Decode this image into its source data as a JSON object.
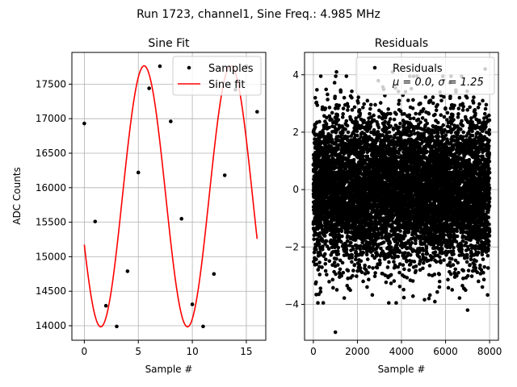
{
  "suptitle": "Run 1723, channel1, Sine Freq.: 4.985 MHz",
  "chart_data": [
    {
      "type": "scatter+line",
      "title": "Sine Fit",
      "xlabel": "Sample #",
      "ylabel": "ADC Counts",
      "xlim": [
        -1.15,
        16.8
      ],
      "ylim": [
        13790,
        17960
      ],
      "xticks": [
        0,
        5,
        10,
        15
      ],
      "yticks": [
        14000,
        14500,
        15000,
        15500,
        16000,
        16500,
        17000,
        17500
      ],
      "grid": true,
      "legend_position": "top-right",
      "series": [
        {
          "name": "Samples",
          "marker": "dot",
          "color": "#000000",
          "x": [
            0,
            1,
            2,
            3,
            4,
            5,
            6,
            7,
            8,
            9,
            10,
            11,
            12,
            13,
            14,
            15,
            16
          ],
          "y": [
            16930,
            15510,
            14290,
            13990,
            14790,
            16220,
            17440,
            17760,
            16960,
            15550,
            14310,
            13990,
            14750,
            16180,
            17420,
            17760,
            17100
          ]
        },
        {
          "name": "Sine fit",
          "line": "solid",
          "color": "#ff0000",
          "model": {
            "offset": 15875,
            "amplitude": 1890,
            "period_samples": 8.03,
            "phase_sample": -4.5
          },
          "x_range": [
            0,
            16
          ]
        }
      ]
    },
    {
      "type": "scatter",
      "title": "Residuals",
      "xlabel": "Sample #",
      "ylabel": "",
      "xlim": [
        -400,
        8400
      ],
      "ylim": [
        -5.25,
        4.78
      ],
      "xticks": [
        0,
        2000,
        4000,
        6000,
        8000
      ],
      "yticks": [
        -4,
        -2,
        0,
        2,
        4
      ],
      "grid": true,
      "legend_position": "top-right",
      "series": [
        {
          "name": "Residuals",
          "marker": "dot",
          "color": "#000000",
          "n_points": 8000,
          "mean": 0.0,
          "std": 1.25,
          "outliers": [
            {
              "x": 1000,
              "y": -4.97
            },
            {
              "x": 1050,
              "y": 4.1
            },
            {
              "x": 7000,
              "y": -4.2
            },
            {
              "x": 3600,
              "y": 4.1
            },
            {
              "x": 7800,
              "y": 4.2
            }
          ]
        }
      ],
      "legend_stats": {
        "mu_label": "μ = 0.0, ",
        "sigma_label": "σ = 1.25"
      }
    }
  ]
}
